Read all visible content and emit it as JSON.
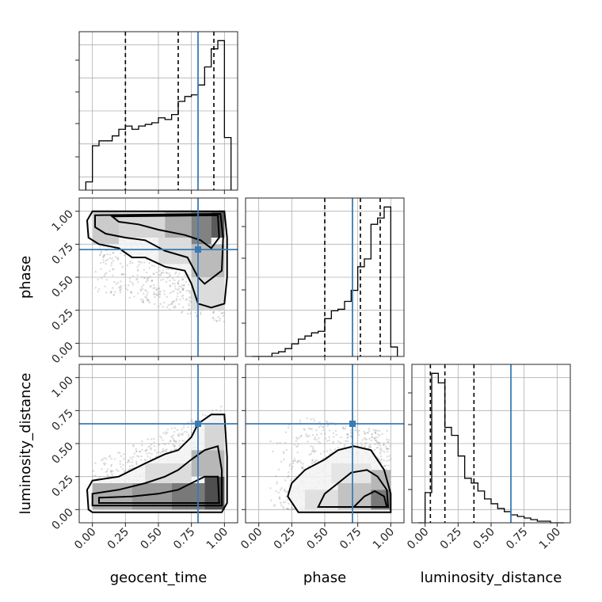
{
  "chart_data": {
    "type": "corner",
    "parameters": [
      "geocent_time",
      "phase",
      "luminosity_distance"
    ],
    "axis_range": [
      -0.1,
      1.1
    ],
    "ticks": [
      0.0,
      0.25,
      0.5,
      0.75,
      1.0
    ],
    "tick_labels": [
      "0.00",
      "0.25",
      "0.50",
      "0.75",
      "1.00"
    ],
    "truths": {
      "geocent_time": 0.8,
      "phase": 0.71,
      "luminosity_distance": 0.65
    },
    "quantiles": {
      "geocent_time": [
        0.25,
        0.65,
        0.92
      ],
      "phase": [
        0.5,
        0.77,
        0.92
      ],
      "luminosity_distance": [
        0.04,
        0.15,
        0.37
      ]
    },
    "histograms": {
      "geocent_time": {
        "edges": [
          -0.05,
          0.0,
          0.05,
          0.1,
          0.15,
          0.2,
          0.25,
          0.3,
          0.35,
          0.4,
          0.45,
          0.5,
          0.55,
          0.6,
          0.65,
          0.7,
          0.75,
          0.8,
          0.85,
          0.9,
          0.95,
          1.0,
          1.05
        ],
        "counts": [
          5,
          27,
          30,
          30,
          33,
          37,
          39,
          37,
          39,
          40,
          41,
          44,
          43,
          46,
          54,
          57,
          58,
          64,
          75,
          86,
          91,
          32
        ]
      },
      "phase": {
        "edges": [
          -0.05,
          0.0,
          0.05,
          0.1,
          0.15,
          0.2,
          0.25,
          0.3,
          0.35,
          0.4,
          0.45,
          0.5,
          0.55,
          0.6,
          0.65,
          0.7,
          0.75,
          0.8,
          0.85,
          0.9,
          0.95,
          1.0,
          1.05
        ],
        "counts": [
          0,
          0,
          0,
          2,
          3,
          5,
          8,
          11,
          13,
          15,
          16,
          24,
          29,
          30,
          35,
          42,
          57,
          62,
          84,
          88,
          95,
          6
        ]
      },
      "luminosity_distance": {
        "edges": [
          -0.05,
          0.0,
          0.05,
          0.1,
          0.15,
          0.2,
          0.25,
          0.3,
          0.35,
          0.4,
          0.45,
          0.5,
          0.55,
          0.6,
          0.65,
          0.7,
          0.75,
          0.8,
          0.85,
          0.9,
          0.95,
          1.0,
          1.05
        ],
        "counts": [
          0,
          19,
          94,
          88,
          60,
          55,
          42,
          28,
          25,
          20,
          15,
          12,
          9,
          7,
          5,
          4,
          3,
          2,
          1,
          1,
          0,
          0
        ]
      }
    },
    "panels_2d": [
      {
        "x": "geocent_time",
        "y": "phase",
        "density": [
          {
            "x0": 0.0,
            "x1": 0.2,
            "y0": 0.75,
            "y1": 1.0,
            "level": 0.2
          },
          {
            "x0": 0.2,
            "x1": 0.55,
            "y0": 0.8,
            "y1": 1.0,
            "level": 0.15
          },
          {
            "x0": 0.55,
            "x1": 0.75,
            "y0": 0.8,
            "y1": 1.0,
            "level": 0.35
          },
          {
            "x0": 0.75,
            "x1": 0.9,
            "y0": 0.75,
            "y1": 1.0,
            "level": 0.55
          },
          {
            "x0": 0.9,
            "x1": 1.0,
            "y0": 0.8,
            "y1": 1.0,
            "level": 0.75
          },
          {
            "x0": 0.5,
            "x1": 0.75,
            "y0": 0.6,
            "y1": 0.8,
            "level": 0.12
          },
          {
            "x0": 0.75,
            "x1": 1.0,
            "y0": 0.5,
            "y1": 0.75,
            "level": 0.28
          },
          {
            "x0": 0.75,
            "x1": 1.0,
            "y0": 0.25,
            "y1": 0.5,
            "level": 0.12
          }
        ],
        "contours": [
          [
            [
              0.0,
              1.0
            ],
            [
              1.0,
              1.0
            ],
            [
              1.02,
              0.8
            ],
            [
              1.02,
              0.5
            ],
            [
              1.0,
              0.3
            ],
            [
              0.9,
              0.27
            ],
            [
              0.8,
              0.3
            ],
            [
              0.75,
              0.45
            ],
            [
              0.7,
              0.55
            ],
            [
              0.55,
              0.58
            ],
            [
              0.4,
              0.65
            ],
            [
              0.3,
              0.65
            ],
            [
              0.2,
              0.72
            ],
            [
              0.05,
              0.75
            ],
            [
              -0.03,
              0.8
            ],
            [
              -0.04,
              0.93
            ],
            [
              0.0,
              1.0
            ]
          ],
          [
            [
              0.02,
              0.97
            ],
            [
              0.97,
              0.98
            ],
            [
              0.99,
              0.8
            ],
            [
              0.98,
              0.55
            ],
            [
              0.85,
              0.45
            ],
            [
              0.8,
              0.5
            ],
            [
              0.72,
              0.65
            ],
            [
              0.55,
              0.7
            ],
            [
              0.4,
              0.78
            ],
            [
              0.25,
              0.8
            ],
            [
              0.1,
              0.83
            ],
            [
              0.02,
              0.88
            ],
            [
              0.02,
              0.97
            ]
          ],
          [
            [
              0.15,
              0.96
            ],
            [
              0.95,
              0.97
            ],
            [
              0.96,
              0.8
            ],
            [
              0.9,
              0.72
            ],
            [
              0.82,
              0.78
            ],
            [
              0.7,
              0.82
            ],
            [
              0.5,
              0.86
            ],
            [
              0.35,
              0.9
            ],
            [
              0.2,
              0.92
            ],
            [
              0.15,
              0.96
            ]
          ]
        ],
        "points": {
          "seed": 11,
          "count": 1300,
          "mode": "gt_phase"
        }
      },
      {
        "x": "geocent_time",
        "y": "luminosity_distance",
        "density": [
          {
            "x0": 0.0,
            "x1": 0.3,
            "y0": 0.0,
            "y1": 0.2,
            "level": 0.35
          },
          {
            "x0": 0.3,
            "x1": 0.6,
            "y0": 0.0,
            "y1": 0.2,
            "level": 0.45
          },
          {
            "x0": 0.6,
            "x1": 0.85,
            "y0": 0.0,
            "y1": 0.2,
            "level": 0.6
          },
          {
            "x0": 0.85,
            "x1": 1.0,
            "y0": 0.0,
            "y1": 0.25,
            "level": 0.8
          },
          {
            "x0": 0.4,
            "x1": 0.75,
            "y0": 0.2,
            "y1": 0.35,
            "level": 0.12
          },
          {
            "x0": 0.75,
            "x1": 1.0,
            "y0": 0.25,
            "y1": 0.45,
            "level": 0.3
          },
          {
            "x0": 0.85,
            "x1": 1.0,
            "y0": 0.45,
            "y1": 0.65,
            "level": 0.15
          }
        ],
        "contours": [
          [
            [
              -0.03,
              0.0
            ],
            [
              -0.04,
              0.15
            ],
            [
              0.0,
              0.22
            ],
            [
              0.2,
              0.25
            ],
            [
              0.4,
              0.35
            ],
            [
              0.55,
              0.42
            ],
            [
              0.65,
              0.45
            ],
            [
              0.75,
              0.55
            ],
            [
              0.8,
              0.65
            ],
            [
              0.9,
              0.72
            ],
            [
              1.0,
              0.72
            ],
            [
              1.02,
              0.4
            ],
            [
              1.02,
              0.05
            ],
            [
              0.98,
              -0.02
            ],
            [
              0.0,
              -0.02
            ],
            [
              -0.03,
              0.0
            ]
          ],
          [
            [
              0.0,
              0.03
            ],
            [
              0.0,
              0.12
            ],
            [
              0.2,
              0.15
            ],
            [
              0.4,
              0.2
            ],
            [
              0.55,
              0.25
            ],
            [
              0.65,
              0.3
            ],
            [
              0.75,
              0.38
            ],
            [
              0.85,
              0.45
            ],
            [
              0.95,
              0.48
            ],
            [
              0.98,
              0.3
            ],
            [
              0.98,
              0.03
            ],
            [
              0.0,
              0.03
            ]
          ],
          [
            [
              0.05,
              0.05
            ],
            [
              0.05,
              0.09
            ],
            [
              0.3,
              0.1
            ],
            [
              0.5,
              0.12
            ],
            [
              0.65,
              0.15
            ],
            [
              0.75,
              0.2
            ],
            [
              0.85,
              0.25
            ],
            [
              0.95,
              0.25
            ],
            [
              0.96,
              0.05
            ],
            [
              0.05,
              0.05
            ]
          ]
        ],
        "points": {
          "seed": 23,
          "count": 1300,
          "mode": "gt_ld"
        }
      },
      {
        "x": "phase",
        "y": "luminosity_distance",
        "density": [
          {
            "x0": 0.35,
            "x1": 0.6,
            "y0": 0.0,
            "y1": 0.15,
            "level": 0.1
          },
          {
            "x0": 0.6,
            "x1": 0.85,
            "y0": 0.0,
            "y1": 0.2,
            "level": 0.25
          },
          {
            "x0": 0.85,
            "x1": 1.0,
            "y0": 0.0,
            "y1": 0.15,
            "level": 0.6
          },
          {
            "x0": 0.55,
            "x1": 0.85,
            "y0": 0.2,
            "y1": 0.35,
            "level": 0.08
          },
          {
            "x0": 0.85,
            "x1": 1.0,
            "y0": 0.15,
            "y1": 0.3,
            "level": 0.3
          }
        ],
        "contours": [
          [
            [
              0.22,
              0.1
            ],
            [
              0.25,
              0.2
            ],
            [
              0.35,
              0.3
            ],
            [
              0.5,
              0.38
            ],
            [
              0.6,
              0.45
            ],
            [
              0.72,
              0.48
            ],
            [
              0.85,
              0.45
            ],
            [
              0.95,
              0.3
            ],
            [
              1.0,
              0.12
            ],
            [
              1.0,
              -0.02
            ],
            [
              0.3,
              -0.02
            ],
            [
              0.22,
              0.1
            ]
          ],
          [
            [
              0.45,
              0.02
            ],
            [
              0.5,
              0.12
            ],
            [
              0.6,
              0.2
            ],
            [
              0.7,
              0.28
            ],
            [
              0.82,
              0.3
            ],
            [
              0.9,
              0.25
            ],
            [
              0.97,
              0.15
            ],
            [
              0.98,
              0.02
            ],
            [
              0.45,
              0.02
            ]
          ],
          [
            [
              0.72,
              0.02
            ],
            [
              0.8,
              0.1
            ],
            [
              0.88,
              0.14
            ],
            [
              0.95,
              0.1
            ],
            [
              0.97,
              0.02
            ],
            [
              0.72,
              0.02
            ]
          ]
        ],
        "points": {
          "seed": 37,
          "count": 1100,
          "mode": "ph_ld"
        }
      }
    ]
  }
}
